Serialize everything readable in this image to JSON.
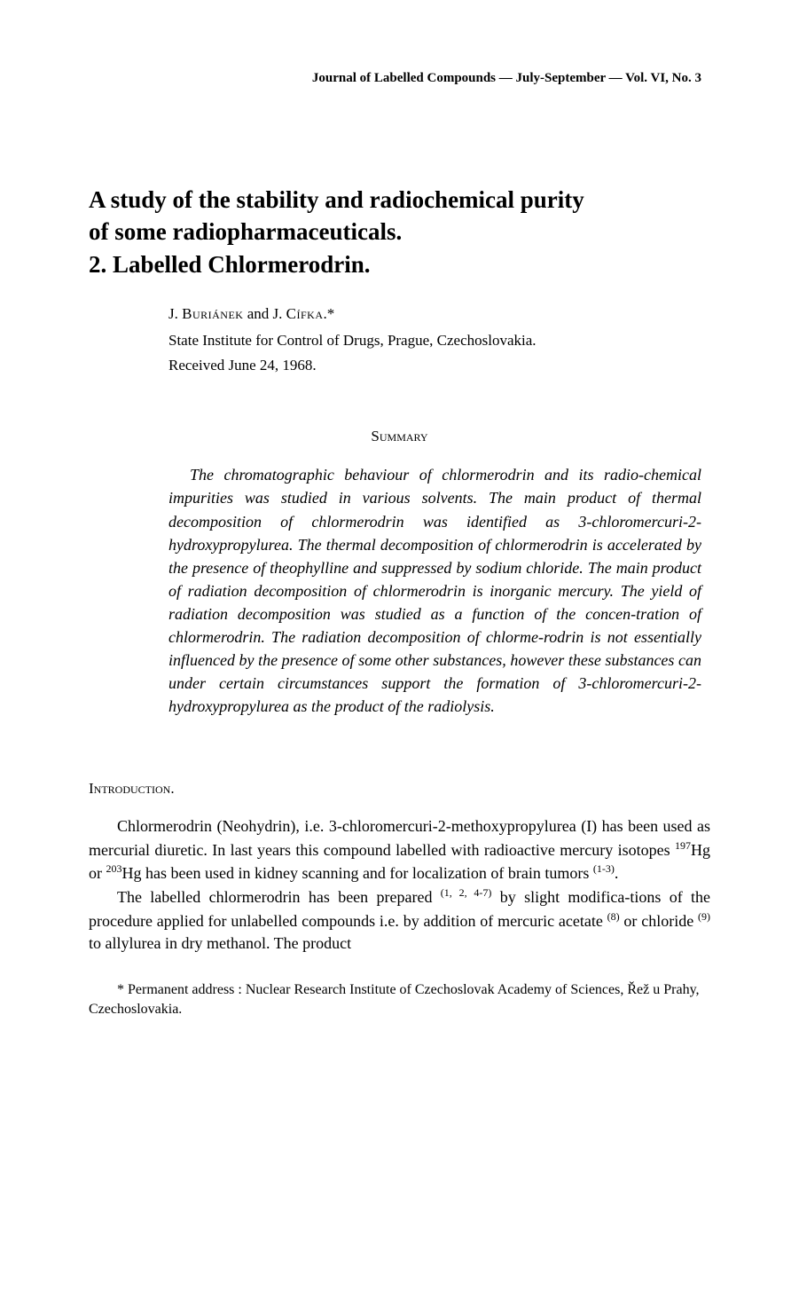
{
  "running_header": "Journal of Labelled Compounds — July-September — Vol. VI, No. 3",
  "title_line1": "A study of the stability and radiochemical purity",
  "title_line2": "of some radiopharmaceuticals.",
  "title_line3": "2. Labelled Chlormerodrin.",
  "authors_prefix": "J. ",
  "authors_name1": "Buriánek",
  "authors_and": " and J. ",
  "authors_name2": "Cífka",
  "authors_suffix": ".*",
  "affiliation": "State Institute for Control of Drugs, Prague, Czechoslovakia.",
  "received": "Received June 24, 1968.",
  "summary_heading": "Summary",
  "summary_body": "The chromatographic behaviour of chlormerodrin and its radio-chemical impurities was studied in various solvents. The main product of thermal decomposition of chlormerodrin was identified as 3-chloromercuri-2-hydroxypropylurea. The thermal decomposition of chlormerodrin is accelerated by the presence of theophylline and suppressed by sodium chloride. The main product of radiation decomposition of chlormerodrin is inorganic mercury. The yield of radiation decomposition was studied as a function of the concen-tration of chlormerodrin. The radiation decomposition of chlorme-rodrin is not essentially influenced by the presence of some other substances, however these substances can under certain circumstances support the formation of 3-chloromercuri-2-hydroxypropylurea as the product of the radiolysis.",
  "intro_heading": "Introduction.",
  "intro_para1_a": "Chlormerodrin (Neohydrin), i.e. 3-chloromercuri-2-methoxypropylurea (I) has been used as mercurial diuretic. In last years this compound labelled with radioactive mercury isotopes ",
  "intro_para1_iso1": "197",
  "intro_para1_b": "Hg or ",
  "intro_para1_iso2": "203",
  "intro_para1_c": "Hg has been used in kidney scanning and for localization of brain tumors ",
  "intro_para1_ref1": "(1-3)",
  "intro_para1_d": ".",
  "intro_para2_a": "The labelled chlormerodrin has been prepared ",
  "intro_para2_ref1": "(1, 2, 4-7)",
  "intro_para2_b": " by slight modifica-tions of the procedure applied for unlabelled compounds i.e. by addition of mercuric acetate ",
  "intro_para2_ref2": "(8)",
  "intro_para2_c": " or chloride ",
  "intro_para2_ref3": "(9)",
  "intro_para2_d": " to allylurea in dry methanol. The product",
  "footnote": "* Permanent address : Nuclear Research Institute of Czechoslovak Academy of Sciences, Řež u Prahy, Czechoslovakia."
}
